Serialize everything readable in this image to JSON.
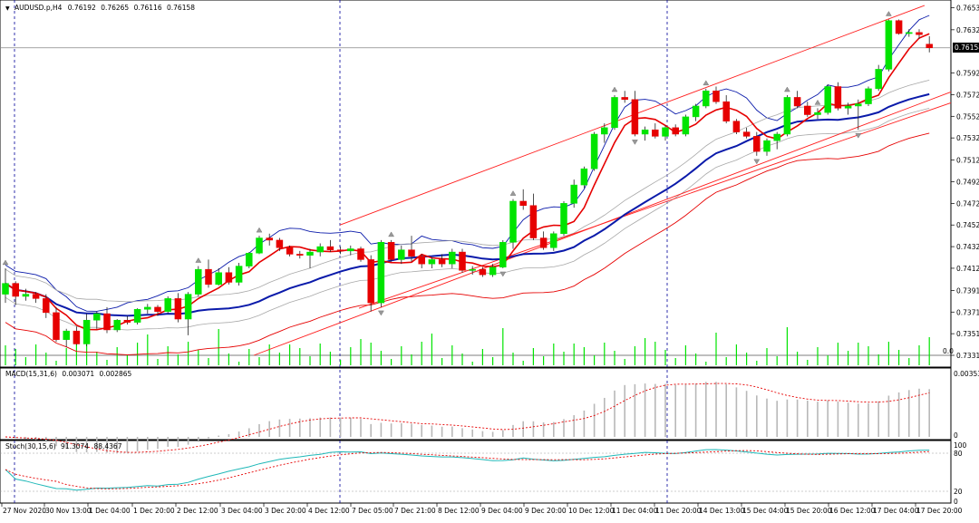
{
  "main_info": {
    "symbol": "AUDUSD.p,H4",
    "open": "0.76192",
    "high": "0.76265",
    "low": "0.76116",
    "close": "0.76158"
  },
  "current_price_tag": "0.76158",
  "price_axis_labels": [
    "0.76530",
    "0.76325",
    "0.75925",
    "0.75725",
    "0.75525",
    "0.75325",
    "0.75120",
    "0.74920",
    "0.74720",
    "0.74520",
    "0.74320",
    "0.74120",
    "0.73915",
    "0.73715",
    "0.73515",
    "0.73315"
  ],
  "volume_zero_label": "0.0",
  "macd_info": {
    "name": "MACD(15,31,6)",
    "main": "0.003071",
    "signal": "0.002865"
  },
  "macd_axis": {
    "top": "0.003536",
    "zero": "0"
  },
  "stoch_info": {
    "name": "Stoch(30,15,6)",
    "main": "91.3074",
    "signal": "88.4367"
  },
  "stoch_axis": {
    "top": "100",
    "upper": "80",
    "lower": "20",
    "bottom": "0"
  },
  "time_labels": [
    "27 Nov 2020",
    "30 Nov 13:00",
    "1 Dec 04:00",
    "1 Dec 20:00",
    "2 Dec 12:00",
    "3 Dec 04:00",
    "3 Dec 20:00",
    "4 Dec 12:00",
    "7 Dec 05:00",
    "7 Dec 21:00",
    "8 Dec 12:00",
    "9 Dec 04:00",
    "9 Dec 20:00",
    "10 Dec 12:00",
    "11 Dec 04:00",
    "11 Dec 20:00",
    "14 Dec 13:00",
    "15 Dec 04:00",
    "15 Dec 20:00",
    "16 Dec 12:00",
    "17 Dec 04:00",
    "17 Dec 20:00"
  ],
  "colors": {
    "bull": "#00e400",
    "bear": "#e60000",
    "ma_fast": "#e60000",
    "ma_slow": "#0a1aaa",
    "bands": "#a8a8a8",
    "bands_outer": "#e60000",
    "channel": "#ff1f1f",
    "volume": "#00e400",
    "macd_hist": "#b8b8b8",
    "macd_signal": "#e60000",
    "stoch_main": "#1fb8b8",
    "stoch_signal": "#e60000",
    "grid_dash": "#00009a"
  },
  "chart_data": {
    "type": "candlestick",
    "symbol": "AUDUSD.p",
    "timeframe": "H4",
    "ylim": [
      0.73315,
      0.7655
    ],
    "candles": [
      [
        0.7388,
        0.7412,
        0.738,
        0.7398
      ],
      [
        0.7398,
        0.74,
        0.7378,
        0.7386
      ],
      [
        0.7386,
        0.7393,
        0.7382,
        0.7388
      ],
      [
        0.7388,
        0.739,
        0.738,
        0.7384
      ],
      [
        0.7384,
        0.7388,
        0.7366,
        0.7371
      ],
      [
        0.7371,
        0.7376,
        0.7344,
        0.7346
      ],
      [
        0.7346,
        0.7356,
        0.7339,
        0.7354
      ],
      [
        0.7354,
        0.7358,
        0.7341,
        0.7342
      ],
      [
        0.7342,
        0.737,
        0.734,
        0.7364
      ],
      [
        0.7364,
        0.7372,
        0.7356,
        0.737
      ],
      [
        0.737,
        0.7376,
        0.7352,
        0.7355
      ],
      [
        0.7355,
        0.7365,
        0.7353,
        0.7364
      ],
      [
        0.7364,
        0.7368,
        0.736,
        0.7362
      ],
      [
        0.7362,
        0.7375,
        0.736,
        0.7374
      ],
      [
        0.7374,
        0.7379,
        0.737,
        0.7376
      ],
      [
        0.7376,
        0.7378,
        0.7368,
        0.7372
      ],
      [
        0.7372,
        0.7386,
        0.737,
        0.7384
      ],
      [
        0.7384,
        0.7389,
        0.7362,
        0.7365
      ],
      [
        0.7365,
        0.739,
        0.735,
        0.7388
      ],
      [
        0.7388,
        0.7414,
        0.7386,
        0.7411
      ],
      [
        0.7411,
        0.742,
        0.7394,
        0.7397
      ],
      [
        0.7397,
        0.7412,
        0.7396,
        0.7408
      ],
      [
        0.7408,
        0.7413,
        0.7397,
        0.7399
      ],
      [
        0.7399,
        0.7417,
        0.7396,
        0.7414
      ],
      [
        0.7414,
        0.7427,
        0.7412,
        0.7426
      ],
      [
        0.7426,
        0.7442,
        0.7425,
        0.744
      ],
      [
        0.744,
        0.7444,
        0.7433,
        0.7438
      ],
      [
        0.7438,
        0.744,
        0.7428,
        0.7431
      ],
      [
        0.7431,
        0.7433,
        0.7423,
        0.7425
      ],
      [
        0.7425,
        0.7428,
        0.7421,
        0.7424
      ],
      [
        0.7424,
        0.743,
        0.7412,
        0.7427
      ],
      [
        0.7427,
        0.7435,
        0.7423,
        0.7432
      ],
      [
        0.7432,
        0.7438,
        0.7427,
        0.7429
      ],
      [
        0.7429,
        0.7432,
        0.7425,
        0.7428
      ],
      [
        0.7428,
        0.7433,
        0.7424,
        0.743
      ],
      [
        0.743,
        0.7432,
        0.7418,
        0.742
      ],
      [
        0.742,
        0.7424,
        0.7372,
        0.738
      ],
      [
        0.738,
        0.7438,
        0.7376,
        0.7436
      ],
      [
        0.7436,
        0.7438,
        0.7418,
        0.742
      ],
      [
        0.742,
        0.7433,
        0.7416,
        0.7429
      ],
      [
        0.7429,
        0.7442,
        0.7418,
        0.7423
      ],
      [
        0.7423,
        0.7425,
        0.7412,
        0.7416
      ],
      [
        0.7416,
        0.7422,
        0.7412,
        0.742
      ],
      [
        0.742,
        0.7425,
        0.7413,
        0.7416
      ],
      [
        0.7416,
        0.743,
        0.7412,
        0.7427
      ],
      [
        0.7427,
        0.743,
        0.7408,
        0.741
      ],
      [
        0.741,
        0.7414,
        0.7406,
        0.7411
      ],
      [
        0.7411,
        0.7413,
        0.7404,
        0.7406
      ],
      [
        0.7406,
        0.7416,
        0.7404,
        0.7413
      ],
      [
        0.7413,
        0.7438,
        0.7412,
        0.7436
      ],
      [
        0.7436,
        0.7476,
        0.743,
        0.7474
      ],
      [
        0.7474,
        0.7485,
        0.7466,
        0.747
      ],
      [
        0.747,
        0.7481,
        0.7438,
        0.744
      ],
      [
        0.744,
        0.7446,
        0.7429,
        0.7431
      ],
      [
        0.7431,
        0.7446,
        0.7428,
        0.7444
      ],
      [
        0.7444,
        0.7474,
        0.7442,
        0.7472
      ],
      [
        0.7472,
        0.7494,
        0.7468,
        0.7489
      ],
      [
        0.7489,
        0.7506,
        0.7486,
        0.7504
      ],
      [
        0.7504,
        0.7538,
        0.7502,
        0.7536
      ],
      [
        0.7536,
        0.7546,
        0.7528,
        0.7542
      ],
      [
        0.7542,
        0.7572,
        0.754,
        0.757
      ],
      [
        0.757,
        0.7576,
        0.7565,
        0.7568
      ],
      [
        0.7568,
        0.7576,
        0.7534,
        0.7536
      ],
      [
        0.7536,
        0.7543,
        0.753,
        0.754
      ],
      [
        0.754,
        0.7546,
        0.7532,
        0.7534
      ],
      [
        0.7534,
        0.7544,
        0.753,
        0.7542
      ],
      [
        0.7542,
        0.7545,
        0.7534,
        0.7536
      ],
      [
        0.7536,
        0.7554,
        0.7534,
        0.7552
      ],
      [
        0.7552,
        0.7564,
        0.7548,
        0.7562
      ],
      [
        0.7562,
        0.7578,
        0.756,
        0.7576
      ],
      [
        0.7576,
        0.758,
        0.7564,
        0.7566
      ],
      [
        0.7566,
        0.7572,
        0.7546,
        0.7548
      ],
      [
        0.7548,
        0.755,
        0.7536,
        0.7538
      ],
      [
        0.7538,
        0.7542,
        0.7532,
        0.7534
      ],
      [
        0.7534,
        0.7538,
        0.7516,
        0.752
      ],
      [
        0.752,
        0.7532,
        0.7516,
        0.753
      ],
      [
        0.753,
        0.7538,
        0.7522,
        0.7536
      ],
      [
        0.7536,
        0.7572,
        0.7534,
        0.757
      ],
      [
        0.757,
        0.7576,
        0.756,
        0.7562
      ],
      [
        0.7562,
        0.7566,
        0.7552,
        0.7554
      ],
      [
        0.7554,
        0.756,
        0.755,
        0.7556
      ],
      [
        0.7556,
        0.7582,
        0.7554,
        0.758
      ],
      [
        0.758,
        0.7584,
        0.7558,
        0.756
      ],
      [
        0.756,
        0.7565,
        0.7554,
        0.7562
      ],
      [
        0.7562,
        0.7568,
        0.754,
        0.7564
      ],
      [
        0.7564,
        0.758,
        0.7562,
        0.7578
      ],
      [
        0.7578,
        0.76,
        0.7576,
        0.7596
      ],
      [
        0.7596,
        0.7642,
        0.7594,
        0.7641
      ],
      [
        0.7641,
        0.7642,
        0.7628,
        0.7629
      ],
      [
        0.7629,
        0.7633,
        0.7626,
        0.763
      ],
      [
        0.763,
        0.7633,
        0.7624,
        0.7628
      ],
      [
        0.76192,
        0.76265,
        0.76116,
        0.76158
      ]
    ],
    "indicators": {
      "moving_averages": [
        "fast (red)",
        "slow (blue)"
      ],
      "envelopes": [
        "inner bands (grey)",
        "outer bands (red/blue)"
      ],
      "channel": "ascending parallel channel (red)",
      "volume": "green histogram"
    },
    "macd": {
      "params": "15,31,6",
      "main": 0.003071,
      "signal": 0.002865
    },
    "stochastic": {
      "params": "30,15,6",
      "main": 91.3074,
      "signal": 88.4367,
      "levels": [
        80,
        20
      ]
    }
  }
}
